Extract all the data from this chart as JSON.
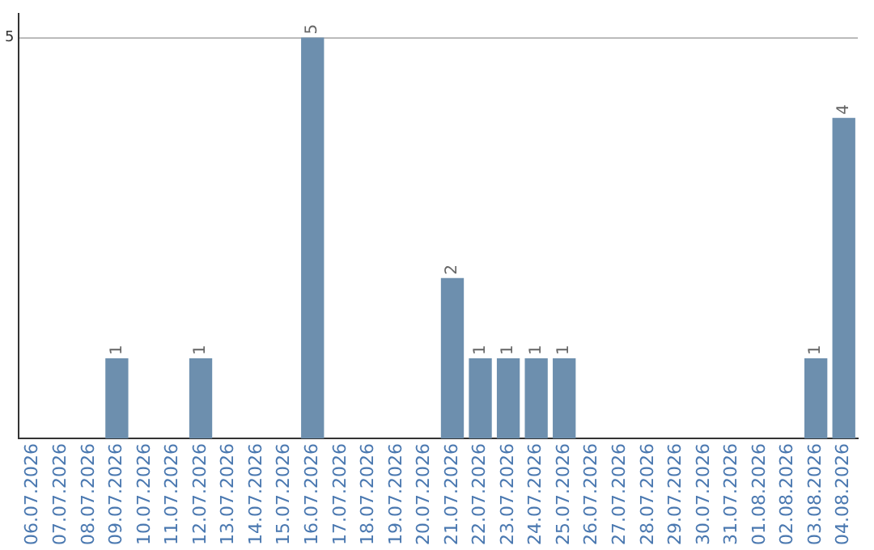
{
  "chart_data": {
    "type": "bar",
    "categories": [
      "06.07.2026",
      "07.07.2026",
      "08.07.2026",
      "09.07.2026",
      "10.07.2026",
      "11.07.2026",
      "12.07.2026",
      "13.07.2026",
      "14.07.2026",
      "15.07.2026",
      "16.07.2026",
      "17.07.2026",
      "18.07.2026",
      "19.07.2026",
      "20.07.2026",
      "21.07.2026",
      "22.07.2026",
      "23.07.2026",
      "24.07.2026",
      "25.07.2026",
      "26.07.2026",
      "27.07.2026",
      "28.07.2026",
      "29.07.2026",
      "30.07.2026",
      "31.07.2026",
      "01.08.2026",
      "02.08.2026",
      "03.08.2026",
      "04.08.2026"
    ],
    "values": [
      0,
      0,
      0,
      1,
      0,
      0,
      1,
      0,
      0,
      0,
      5,
      0,
      0,
      0,
      0,
      2,
      1,
      1,
      1,
      1,
      0,
      0,
      0,
      0,
      0,
      0,
      0,
      0,
      1,
      4
    ],
    "value_labels": [
      null,
      null,
      null,
      "1",
      null,
      null,
      "1",
      null,
      null,
      null,
      "5",
      null,
      null,
      null,
      null,
      "2",
      "1",
      "1",
      "1",
      "1",
      null,
      null,
      null,
      null,
      null,
      null,
      null,
      null,
      "1",
      "4"
    ],
    "color": "#6d8fae",
    "ylim": [
      0,
      5.3
    ],
    "yticks": [
      5
    ],
    "grid": "y",
    "legend": false
  }
}
